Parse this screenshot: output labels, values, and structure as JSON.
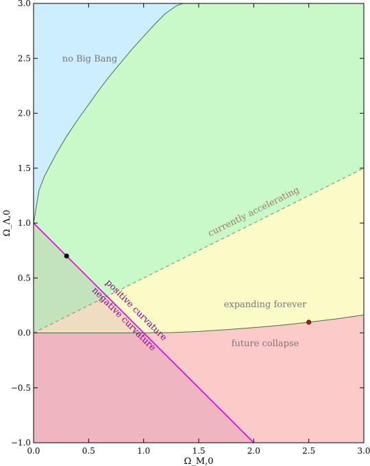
{
  "colors": {
    "no_big_bang": "#cdeefe",
    "accelerating_open": "#c9f9c9",
    "expanding_forever": "#fbfbc8",
    "future_collapse": "#fdcaca",
    "positive_curvature_region_tint": "#c2e3bb",
    "neg_curv_overlap_tint": "#f0ddc1",
    "closed_region_tint": "#efb5c1",
    "boundary_line": "#4a6a4a",
    "accel_dashed": "#7a8a5a",
    "flat_line": "#dd00dd",
    "curvature_text": "#880088",
    "region_text": "#777777",
    "accel_text": "#9a7a6a",
    "point_black": "#000000",
    "point_red": "#992222"
  },
  "chart_data": {
    "type": "area",
    "title": "",
    "xlabel": "Ω_M,0",
    "ylabel": "Ω_Λ,0",
    "xlim": [
      0,
      3
    ],
    "ylim": [
      -1,
      3
    ],
    "xticks": [
      "0.0",
      "0.5",
      "1.0",
      "1.5",
      "2.0",
      "2.5",
      "3.0"
    ],
    "yticks": [
      "−1.0",
      "−0.5",
      "0.0",
      "0.5",
      "1.0",
      "1.5",
      "2.0",
      "2.5",
      "3.0"
    ],
    "grid": false,
    "regions": {
      "no_big_bang": "no Big Bang",
      "accelerating": "currently accelerating",
      "expanding": "expanding forever",
      "collapse": "future collapse"
    },
    "flat_line": {
      "x": [
        0,
        2
      ],
      "y": [
        1,
        -1
      ],
      "label_above": "positive curvature",
      "label_below": "negative curvature"
    },
    "acceleration_line": {
      "x": [
        0,
        3
      ],
      "y": [
        0,
        1.5
      ]
    },
    "big_bang_boundary": {
      "x": [
        0,
        0.05,
        0.1,
        0.2,
        0.3,
        0.4,
        0.5,
        0.6,
        0.7,
        0.8,
        0.9,
        1.0,
        1.1,
        1.2,
        1.3,
        1.36
      ],
      "y": [
        1.0,
        1.3,
        1.43,
        1.62,
        1.79,
        1.94,
        2.08,
        2.22,
        2.35,
        2.47,
        2.59,
        2.7,
        2.81,
        2.91,
        2.98,
        3.0
      ]
    },
    "recollapse_boundary": {
      "x": [
        0,
        1.0,
        1.25,
        1.5,
        1.75,
        2.0,
        2.25,
        2.5,
        2.75,
        3.0
      ],
      "y": [
        0,
        0,
        0.003,
        0.013,
        0.03,
        0.048,
        0.07,
        0.097,
        0.128,
        0.163
      ]
    },
    "points": [
      {
        "x": 0.3,
        "y": 0.7
      },
      {
        "x": 2.5,
        "y": 0.097
      }
    ]
  }
}
